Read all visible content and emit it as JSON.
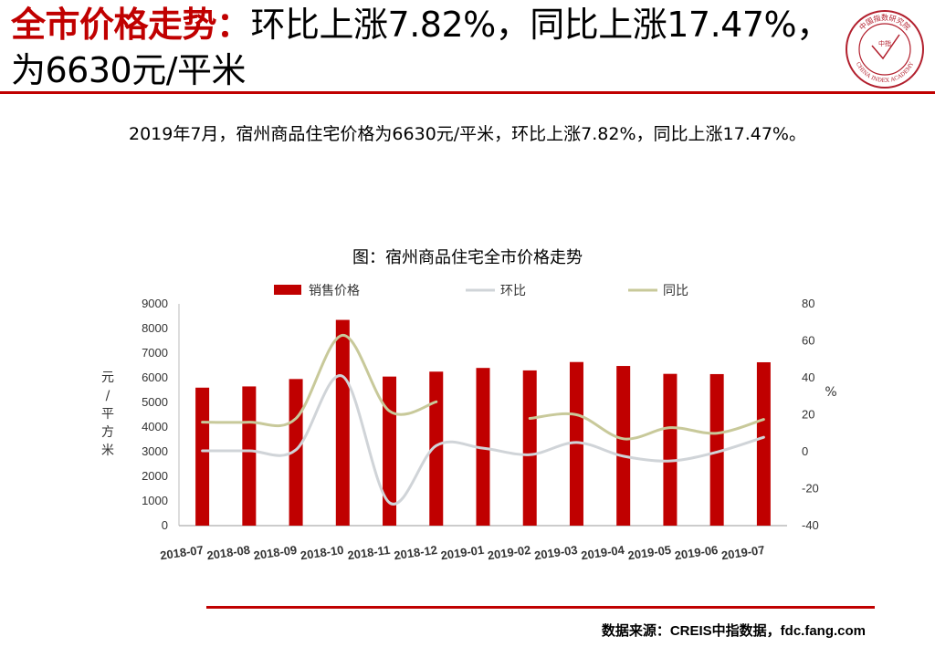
{
  "header": {
    "title_part1": "全市价格走势：",
    "title_part2": "环比上涨7.82%，同比上涨17.47%，为6630元/平米"
  },
  "logo": {
    "text_top": "中国指数研究院",
    "text_bottom": "CHINA INDEX ACADEMY",
    "center": "中指"
  },
  "summary": "2019年7月，宿州商品住宅价格为6630元/平米，环比上涨7.82%，同比上涨17.47%。",
  "source": "数据来源：CREIS中指数据，fdc.fang.com",
  "colors": {
    "bar": "#c00000",
    "mom": "#d0d4d8",
    "yoy": "#c8c99a",
    "accent": "#c00000"
  },
  "chart_data": {
    "type": "bar",
    "title": "图：宿州商品住宅全市价格走势",
    "categories": [
      "2018-07",
      "2018-08",
      "2018-09",
      "2018-10",
      "2018-11",
      "2018-12",
      "2019-01",
      "2019-02",
      "2019-03",
      "2019-04",
      "2019-05",
      "2019-06",
      "2019-07"
    ],
    "series": [
      {
        "name": "销售价格",
        "type": "bar",
        "axis": "left",
        "values": [
          5600,
          5650,
          5950,
          8350,
          6050,
          6250,
          6400,
          6300,
          6640,
          6480,
          6160,
          6150,
          6630
        ]
      },
      {
        "name": "环比",
        "type": "line",
        "axis": "right",
        "values": [
          0.5,
          0.5,
          1.0,
          40.8,
          -27.6,
          3.3,
          1.9,
          -1.6,
          5.0,
          -2.4,
          -5.0,
          -0.2,
          7.82
        ]
      },
      {
        "name": "同比",
        "type": "line",
        "axis": "right",
        "values": [
          16,
          16,
          18,
          63,
          22,
          27,
          null,
          18,
          20,
          7,
          13,
          10,
          17.47
        ]
      }
    ],
    "ylabel": "元/平方米",
    "ylim": [
      0,
      9000
    ],
    "yticks": [
      0,
      1000,
      2000,
      3000,
      4000,
      5000,
      6000,
      7000,
      8000,
      9000
    ],
    "y2label": "%",
    "y2lim": [
      -40,
      80
    ],
    "y2ticks": [
      -40,
      -20,
      0,
      20,
      40,
      60,
      80
    ],
    "legend_position": "top"
  }
}
